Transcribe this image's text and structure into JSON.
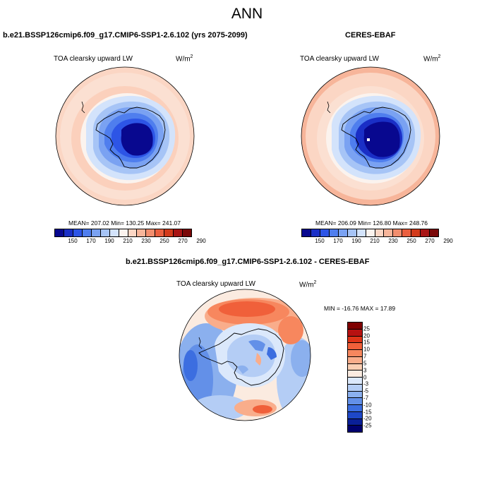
{
  "title": "ANN",
  "panels": {
    "model": {
      "title": "b.e21.BSSP126cmip6.f09_g17.CMIP6-SSP1-2.6.102 (yrs 2075-2099)",
      "variable": "TOA clearsky upward LW",
      "units_base": "W/m",
      "units_exp": "2",
      "stats": "MEAN= 207.02  Min= 130.25  Max= 241.07"
    },
    "obs": {
      "title": "CERES-EBAF",
      "variable": "TOA clearsky upward LW",
      "units_base": "W/m",
      "units_exp": "2",
      "stats": "MEAN= 206.09  Min= 126.80  Max= 248.76"
    },
    "diff": {
      "title": "b.e21.BSSP126cmip6.f09_g17.CMIP6-SSP1-2.6.102 - CERES-EBAF",
      "variable": "TOA clearsky upward LW",
      "units_base": "W/m",
      "units_exp": "2",
      "stats": "MIN = -16.76 MAX =  17.89"
    }
  },
  "abs_colorbar": {
    "colors": [
      "#08088f",
      "#1a2fc6",
      "#2d55e6",
      "#4f7eee",
      "#7aa2f2",
      "#a6c4f6",
      "#d3e3fb",
      "#fbf3ee",
      "#fbd6c4",
      "#f7b59a",
      "#f28e6e",
      "#ea5f3f",
      "#d23a1b",
      "#a81414",
      "#7a0808"
    ],
    "tick_labels": [
      "150",
      "170",
      "190",
      "210",
      "230",
      "250",
      "270",
      "290"
    ]
  },
  "diff_colorbar": {
    "colors": [
      "#7f0000",
      "#b71111",
      "#de3418",
      "#f0603a",
      "#f7875e",
      "#f9ad8b",
      "#fbcfb4",
      "#fbebe0",
      "#dbe8fb",
      "#b4cdf5",
      "#8bb0ee",
      "#6390e8",
      "#3c6ee0",
      "#1e48c8",
      "#0a1f98",
      "#00006e"
    ],
    "tick_labels": [
      "25",
      "20",
      "15",
      "10",
      "7",
      "5",
      "3",
      "0",
      "-3",
      "-5",
      "-7",
      "-10",
      "-15",
      "-20",
      "-25"
    ]
  }
}
